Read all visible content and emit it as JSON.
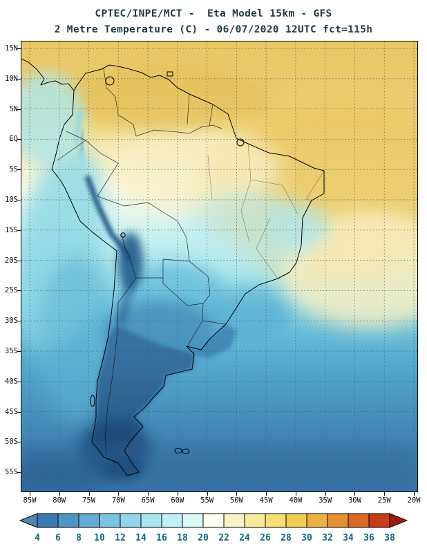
{
  "header": {
    "line1": "CPTEC/INPE/MCT -  Eta Model 15km - GFS",
    "line2": "2 Metre Temperature (C) - 06/07/2020 12UTC fct=115h"
  },
  "map": {
    "lat_labels": [
      "15N",
      "10N",
      "5N",
      "EQ",
      "5S",
      "10S",
      "15S",
      "20S",
      "25S",
      "30S",
      "35S",
      "40S",
      "45S",
      "50S",
      "55S"
    ],
    "lon_labels": [
      "85W",
      "80W",
      "75W",
      "70W",
      "65W",
      "60W",
      "55W",
      "50W",
      "45W",
      "40W",
      "35W",
      "30W",
      "25W",
      "20W"
    ]
  },
  "colorbar": {
    "tick_labels": [
      "4",
      "6",
      "8",
      "10",
      "12",
      "14",
      "16",
      "18",
      "20",
      "22",
      "24",
      "26",
      "28",
      "30",
      "32",
      "34",
      "36",
      "38"
    ],
    "segment_colors": [
      "#4c88b8",
      "#3c7ab2",
      "#5094c6",
      "#65abd6",
      "#7cc3e4",
      "#93d5ec",
      "#a9e4f1",
      "#c0eff5",
      "#daf8f6",
      "#fefdf2",
      "#faf3c8",
      "#f8ea9d",
      "#f6de72",
      "#f2cd55",
      "#ecb144",
      "#e39134",
      "#d96a26",
      "#c43d1b",
      "#9c1b10"
    ]
  },
  "colors": {
    "title": "#1d3b44",
    "axis_label": "#0a0a0a",
    "colorbar_label": "#0e6876",
    "grid": "#455c66",
    "frame": "#000000"
  },
  "chart_data": {
    "type": "heatmap",
    "title": "2 Metre Temperature (C)",
    "source": "CPTEC/INPE/MCT",
    "model": "Eta Model 15km - GFS",
    "valid": "06/07/2020 12UTC fct=115h",
    "x_ticks": [
      "85W",
      "80W",
      "75W",
      "70W",
      "65W",
      "60W",
      "55W",
      "50W",
      "45W",
      "40W",
      "35W",
      "30W",
      "25W",
      "20W"
    ],
    "y_ticks": [
      "15N",
      "10N",
      "5N",
      "EQ",
      "5S",
      "10S",
      "15S",
      "20S",
      "25S",
      "30S",
      "35S",
      "40S",
      "45S",
      "50S",
      "55S"
    ],
    "colorbar_ticks_C": [
      4,
      6,
      8,
      10,
      12,
      14,
      16,
      18,
      20,
      22,
      24,
      26,
      28,
      30,
      32,
      34,
      36,
      38
    ],
    "field_summary": [
      {
        "region": "Northern South America / tropical Atlantic",
        "approx_C": "24-30"
      },
      {
        "region": "Amazon / central Brazil",
        "approx_C": "16-24"
      },
      {
        "region": "Southern Brazil / Uruguay",
        "approx_C": "8-14"
      },
      {
        "region": "Andes ridge / Patagonia / southern Argentina",
        "approx_C": "<4-8"
      },
      {
        "region": "Mid-latitude South Atlantic and Pacific",
        "approx_C": "6-12"
      }
    ]
  }
}
